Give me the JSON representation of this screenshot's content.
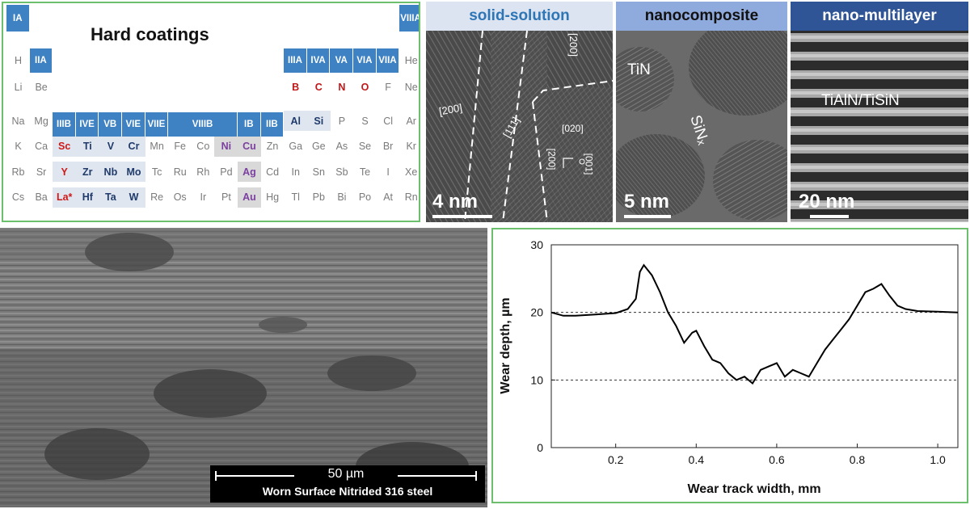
{
  "periodic_table": {
    "title": "Hard coatings",
    "group_headers": [
      "IA",
      "VIIIA",
      "IIA",
      "IIIA",
      "IVA",
      "VA",
      "VIA",
      "VIIA",
      "IIIB",
      "IVE",
      "VB",
      "VIE",
      "VIIE",
      "VIIIB",
      "IB",
      "IIB"
    ],
    "rows": [
      [
        "H",
        "",
        "",
        "",
        "",
        "",
        "",
        "",
        "",
        "",
        "",
        "",
        "",
        "",
        "",
        "",
        "",
        "He"
      ],
      [
        "Li",
        "Be",
        "",
        "",
        "",
        "",
        "",
        "",
        "",
        "",
        "",
        "",
        "B",
        "C",
        "N",
        "O",
        "F",
        "Ne"
      ],
      [
        "Na",
        "Mg",
        "",
        "",
        "",
        "",
        "",
        "",
        "",
        "",
        "",
        "",
        "Al",
        "Si",
        "P",
        "S",
        "Cl",
        "Ar"
      ],
      [
        "K",
        "Ca",
        "Sc",
        "Ti",
        "V",
        "Cr",
        "Mn",
        "Fe",
        "Co",
        "Ni",
        "Cu",
        "Zn",
        "Ga",
        "Ge",
        "As",
        "Se",
        "Br",
        "Kr"
      ],
      [
        "Rb",
        "Sr",
        "Y",
        "Zr",
        "Nb",
        "Mo",
        "Tc",
        "Ru",
        "Rh",
        "Pd",
        "Ag",
        "Cd",
        "In",
        "Sn",
        "Sb",
        "Te",
        "I",
        "Xe"
      ],
      [
        "Cs",
        "Ba",
        "La*",
        "Hf",
        "Ta",
        "W",
        "Re",
        "Os",
        "Ir",
        "Pt",
        "Au",
        "Hg",
        "Tl",
        "Pb",
        "Bi",
        "Po",
        "At",
        "Rn"
      ]
    ],
    "highlighted_metals": [
      "Ti",
      "V",
      "Cr",
      "Zr",
      "Nb",
      "Mo",
      "Hf",
      "Ta",
      "W",
      "Al",
      "Si"
    ],
    "highlighted_nonmetals": [
      "B",
      "C",
      "N",
      "O"
    ],
    "highlighted_rare_earths": [
      "Sc",
      "Y",
      "La*"
    ],
    "highlighted_noble": [
      "Ni",
      "Cu",
      "Ag",
      "Au"
    ]
  },
  "tem_panels": [
    {
      "title": "solid-solution",
      "scale": "4 nm",
      "labels": [
        "[200]",
        "[111]",
        "[200]",
        "[020]",
        "[200]",
        "[001]"
      ]
    },
    {
      "title": "nanocomposite",
      "scale": "5 nm",
      "labels": [
        "TiN",
        "SiNₓ"
      ]
    },
    {
      "title": "nano-multilayer",
      "scale": "20 nm",
      "labels": [
        "TiAlN/TiSiN"
      ]
    }
  ],
  "sem": {
    "scale": "50 µm",
    "caption": "Worn Surface Nitrided 316 steel"
  },
  "chart_data": {
    "type": "line",
    "xlabel": "Wear track width, mm",
    "ylabel": "Wear depth, µm",
    "xlim": [
      0.04,
      1.05
    ],
    "ylim": [
      0,
      30
    ],
    "xticks": [
      "0.2",
      "0.4",
      "0.6",
      "0.8",
      "1.0"
    ],
    "yticks": [
      "0",
      "10",
      "20",
      "30"
    ],
    "reference_lines": [
      10,
      20
    ],
    "x": [
      0.04,
      0.07,
      0.1,
      0.15,
      0.2,
      0.23,
      0.25,
      0.26,
      0.27,
      0.29,
      0.31,
      0.33,
      0.35,
      0.37,
      0.39,
      0.4,
      0.42,
      0.44,
      0.46,
      0.48,
      0.5,
      0.52,
      0.54,
      0.56,
      0.58,
      0.6,
      0.62,
      0.64,
      0.66,
      0.68,
      0.7,
      0.72,
      0.74,
      0.76,
      0.78,
      0.8,
      0.82,
      0.84,
      0.86,
      0.88,
      0.9,
      0.92,
      0.95,
      1.0,
      1.05
    ],
    "y": [
      20,
      19.5,
      19.5,
      19.7,
      19.9,
      20.5,
      22,
      26,
      27,
      25.5,
      23,
      20,
      18,
      15.5,
      17,
      17.3,
      15,
      13,
      12.5,
      11,
      10,
      10.5,
      9.5,
      11.5,
      12,
      12.5,
      10.5,
      11.5,
      11,
      10.5,
      12.5,
      14.5,
      16,
      17.5,
      19,
      21,
      23,
      23.5,
      24.2,
      22.5,
      21,
      20.5,
      20.2,
      20.1,
      20
    ],
    "line_color": "#000000"
  },
  "colors": {
    "tem_header_1": "#dbe4f0",
    "tem_header_1_text": "#2e75b6",
    "tem_header_2": "#8faadc",
    "tem_header_3": "#2f5597",
    "panel_border": "#6cbf6c",
    "group_header": "#3e82c4"
  }
}
